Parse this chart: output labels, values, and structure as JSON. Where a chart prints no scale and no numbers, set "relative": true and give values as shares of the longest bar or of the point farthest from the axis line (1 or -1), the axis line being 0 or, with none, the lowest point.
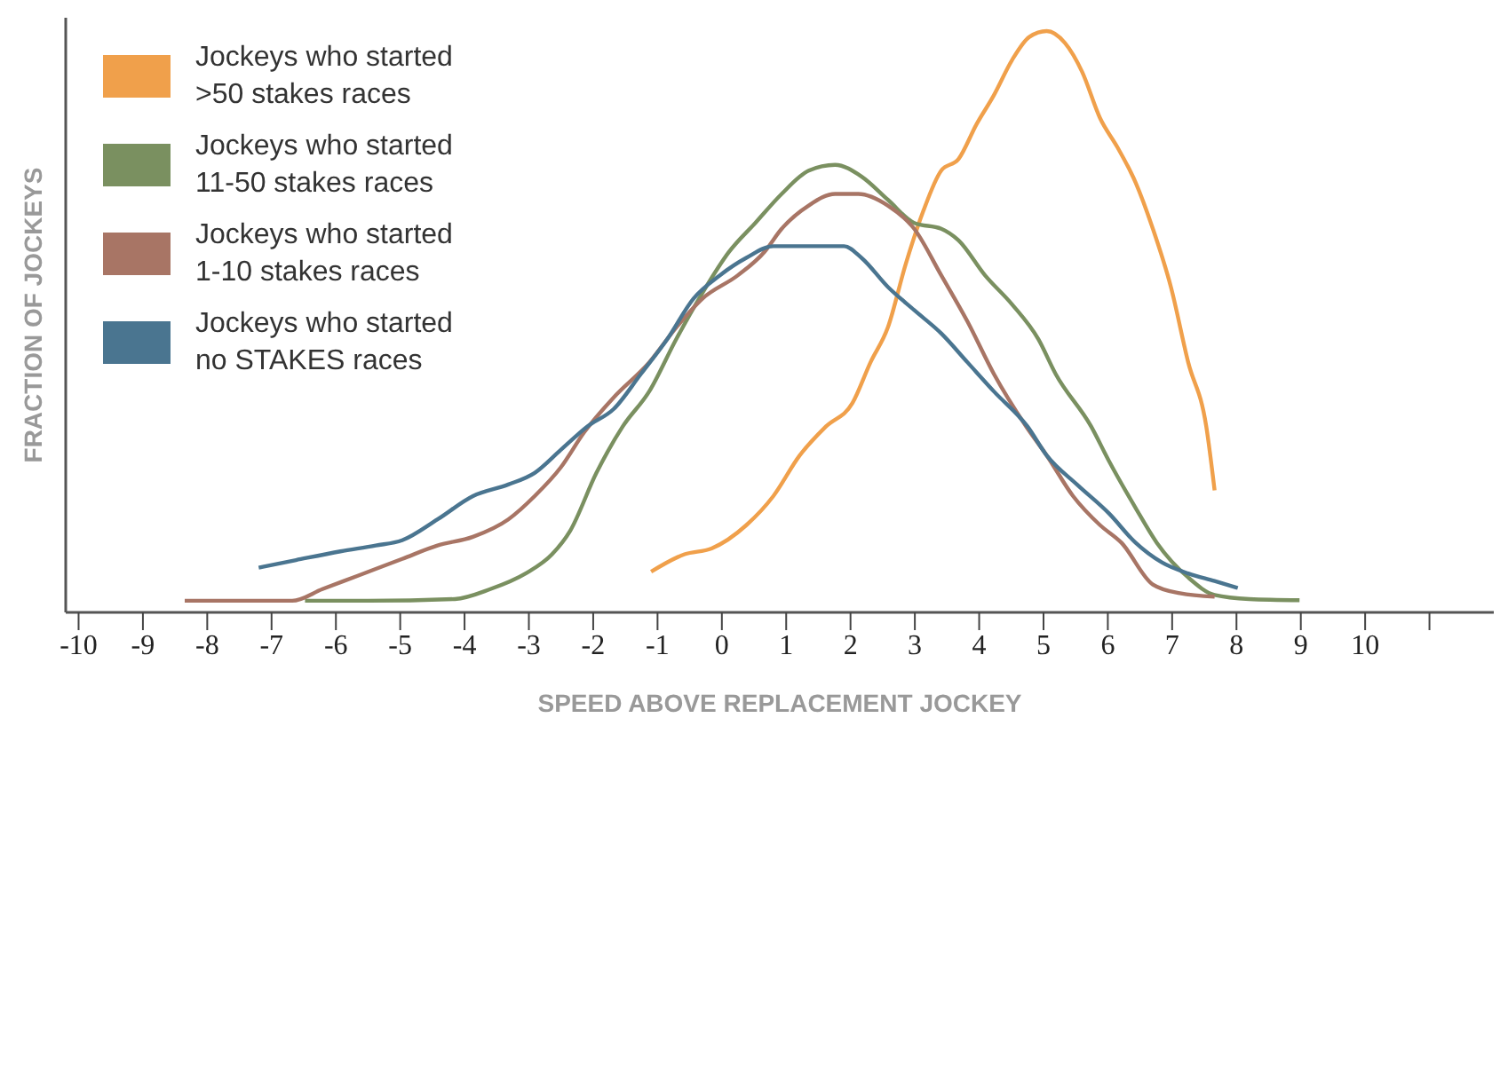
{
  "chart_data": {
    "type": "line",
    "relative": true,
    "xlabel": "SPEED ABOVE REPLACEMENT JOCKEY",
    "ylabel": "FRACTION OF JOCKEYS",
    "xlim": [
      -10.2,
      12
    ],
    "xticks": [
      -10,
      -9,
      -8,
      -7,
      -6,
      -5,
      -4,
      -3,
      -2,
      -1,
      0,
      1,
      2,
      3,
      4,
      5,
      6,
      7,
      8,
      9,
      10,
      {
        "value": 11,
        "label": null
      }
    ],
    "legend": "top left",
    "marker": "none",
    "line_style": "solid",
    "series": [
      {
        "name": "Jockeys who started >50 stakes races",
        "color": "#f0a04b",
        "x": [
          -1.1,
          -0.58,
          -0.16,
          0.38,
          0.8,
          1.21,
          1.62,
          2.03,
          2.31,
          2.58,
          2.86,
          3.13,
          3.41,
          3.68,
          3.96,
          4.23,
          4.51,
          4.78,
          5.05,
          5.33,
          5.6,
          5.88,
          6.15,
          6.43,
          6.7,
          6.98,
          7.25,
          7.53,
          7.66
        ],
        "values": [
          0.07,
          0.1,
          0.11,
          0.15,
          0.2,
          0.27,
          0.32,
          0.36,
          0.43,
          0.49,
          0.6,
          0.69,
          0.76,
          0.78,
          0.84,
          0.89,
          0.95,
          0.99,
          1.0,
          0.98,
          0.93,
          0.85,
          0.8,
          0.74,
          0.66,
          0.56,
          0.43,
          0.32,
          0.21
        ]
      },
      {
        "name": "Jockeys who started 11-50 stakes races",
        "color": "#7a9060",
        "x": [
          -6.48,
          -5.5,
          -4.15,
          -3.6,
          -3.05,
          -2.64,
          -2.36,
          -1.95,
          -1.54,
          -1.13,
          -0.71,
          -0.3,
          0.11,
          0.52,
          0.93,
          1.35,
          1.76,
          2.17,
          2.58,
          2.99,
          3.41,
          3.68,
          4.09,
          4.51,
          4.92,
          5.19,
          5.74,
          6.02,
          6.43,
          6.76,
          7.25,
          7.66,
          8.2,
          8.98
        ],
        "values": [
          0.02,
          0.02,
          0.023,
          0.04,
          0.067,
          0.1,
          0.14,
          0.24,
          0.32,
          0.38,
          0.47,
          0.55,
          0.62,
          0.67,
          0.72,
          0.76,
          0.77,
          0.75,
          0.71,
          0.67,
          0.66,
          0.64,
          0.58,
          0.53,
          0.47,
          0.41,
          0.32,
          0.26,
          0.18,
          0.12,
          0.06,
          0.03,
          0.023,
          0.021
        ]
      },
      {
        "name": "Jockeys who started 1-10 stakes races",
        "color": "#a87565",
        "x": [
          -8.35,
          -6.68,
          -6.21,
          -5.66,
          -4.97,
          -4.42,
          -3.87,
          -3.32,
          -2.91,
          -2.5,
          -2.14,
          -1.68,
          -1.13,
          -0.71,
          -0.3,
          0.25,
          0.66,
          0.93,
          1.35,
          1.76,
          2.12,
          2.58,
          2.99,
          3.41,
          3.82,
          4.23,
          4.73,
          5.05,
          5.46,
          5.88,
          6.21,
          6.7,
          7.12,
          7.66
        ],
        "values": [
          0.02,
          0.02,
          0.04,
          0.063,
          0.092,
          0.115,
          0.13,
          0.16,
          0.2,
          0.25,
          0.31,
          0.37,
          0.43,
          0.49,
          0.54,
          0.58,
          0.62,
          0.66,
          0.7,
          0.72,
          0.72,
          0.7,
          0.66,
          0.58,
          0.5,
          0.41,
          0.32,
          0.27,
          0.2,
          0.15,
          0.12,
          0.048,
          0.033,
          0.027
        ]
      },
      {
        "name": "Jockeys who started no STAKES races",
        "color": "#4a7590",
        "x": [
          -7.2,
          -6.62,
          -5.93,
          -5.38,
          -4.97,
          -4.42,
          -3.87,
          -3.32,
          -2.91,
          -2.5,
          -2.09,
          -1.68,
          -1.26,
          -0.85,
          -0.44,
          -0.03,
          0.38,
          0.8,
          1.35,
          1.9,
          2.17,
          2.58,
          2.99,
          3.41,
          3.82,
          4.23,
          4.75,
          5.05,
          5.52,
          6.02,
          6.43,
          6.84,
          7.25,
          7.66,
          8.02
        ],
        "values": [
          0.077,
          0.09,
          0.105,
          0.115,
          0.124,
          0.16,
          0.2,
          0.22,
          0.24,
          0.28,
          0.32,
          0.35,
          0.41,
          0.47,
          0.54,
          0.58,
          0.61,
          0.63,
          0.63,
          0.63,
          0.61,
          0.56,
          0.52,
          0.48,
          0.43,
          0.38,
          0.32,
          0.27,
          0.22,
          0.17,
          0.12,
          0.086,
          0.067,
          0.054,
          0.042
        ]
      }
    ]
  }
}
